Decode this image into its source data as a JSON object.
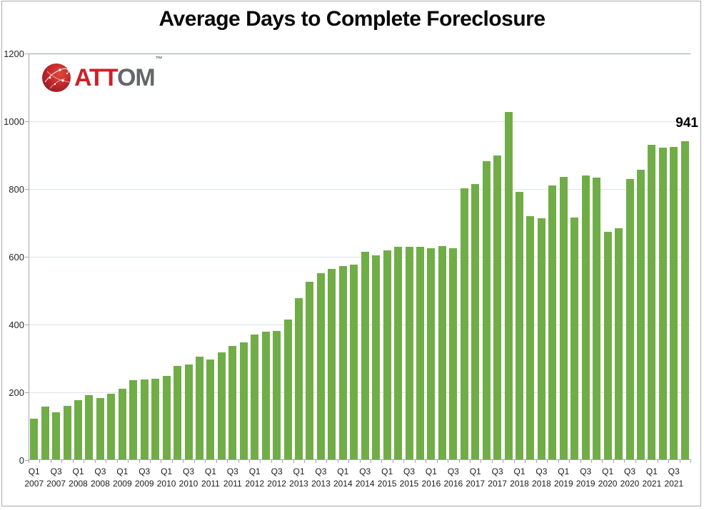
{
  "chart_data": {
    "type": "bar",
    "title": "Average Days to Complete Foreclosure",
    "xlabel": "",
    "ylabel": "",
    "ylim": [
      0,
      1200
    ],
    "y_ticks": [
      0,
      200,
      400,
      600,
      800,
      1000,
      1200
    ],
    "grid": "horizontal",
    "legend": "none",
    "bar_color": "#70ad47",
    "x_tick_label_step": 2,
    "categories": [
      "Q1 2007",
      "Q2 2007",
      "Q3 2007",
      "Q4 2007",
      "Q1 2008",
      "Q2 2008",
      "Q3 2008",
      "Q4 2008",
      "Q1 2009",
      "Q2 2009",
      "Q3 2009",
      "Q4 2009",
      "Q1 2010",
      "Q2 2010",
      "Q3 2010",
      "Q4 2010",
      "Q1 2011",
      "Q2 2011",
      "Q3 2011",
      "Q4 2011",
      "Q1 2012",
      "Q2 2012",
      "Q3 2012",
      "Q4 2012",
      "Q1 2013",
      "Q2 2013",
      "Q3 2013",
      "Q4 2013",
      "Q1 2014",
      "Q2 2014",
      "Q3 2014",
      "Q4 2014",
      "Q1 2015",
      "Q2 2015",
      "Q3 2015",
      "Q4 2015",
      "Q1 2016",
      "Q2 2016",
      "Q3 2016",
      "Q4 2016",
      "Q1 2017",
      "Q2 2017",
      "Q3 2017",
      "Q4 2017",
      "Q1 2018",
      "Q2 2018",
      "Q3 2018",
      "Q4 2018",
      "Q1 2019",
      "Q2 2019",
      "Q3 2019",
      "Q4 2019",
      "Q1 2020",
      "Q2 2020",
      "Q3 2020",
      "Q4 2020",
      "Q1 2021",
      "Q2 2021",
      "Q3 2021",
      "Q4 2021"
    ],
    "values": [
      122,
      157,
      142,
      161,
      176,
      192,
      184,
      195,
      210,
      236,
      238,
      240,
      249,
      279,
      283,
      305,
      298,
      318,
      336,
      348,
      370,
      378,
      382,
      414,
      477,
      526,
      551,
      564,
      572,
      577,
      615,
      604,
      620,
      629,
      630,
      629,
      625,
      631,
      625,
      803,
      814,
      883,
      899,
      1027,
      791,
      720,
      713,
      811,
      835,
      716,
      841,
      834,
      673,
      685,
      830,
      857,
      930,
      922,
      924,
      941
    ],
    "data_label": {
      "text": "941",
      "category": "Q4 2021"
    }
  },
  "branding": {
    "logo_red": "ATT",
    "logo_gray": "OM",
    "trademark": "™",
    "brand_red": "#cd2128",
    "brand_gray": "#64666a"
  }
}
